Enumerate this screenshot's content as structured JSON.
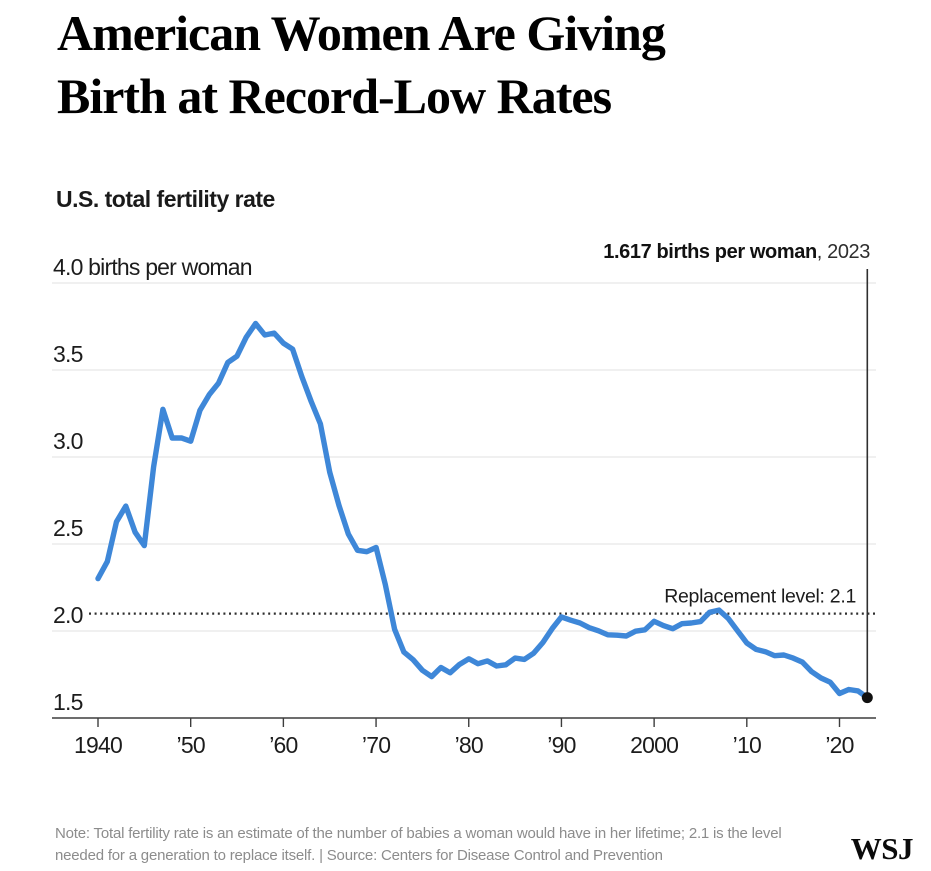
{
  "header": {
    "title_line1": "American Women Are Giving",
    "title_line2": "Birth at Record-Low Rates",
    "subtitle": "U.S. total fertility rate"
  },
  "footer": {
    "note_line1": "Note: Total fertility rate is an estimate of the number of babies a woman would have in her lifetime; 2.1 is the level",
    "note_line2": "needed for a generation to replace itself. | Source: Centers for Disease Control and Prevention",
    "logo": "WSJ"
  },
  "colors": {
    "line": "#3e87d8",
    "grid": "#e8e8e8",
    "axis": "#3d3d3d",
    "dotted": "#2e2e2e",
    "text": "#1c1c1c",
    "endpoint": "#101010",
    "marker_line": "#2f2f2f",
    "note": "#8c8c8c"
  },
  "chart_data": {
    "type": "line",
    "title": "American Women Are Giving Birth at Record-Low Rates",
    "subtitle": "U.S. total fertility rate",
    "ylabel": "births per woman",
    "xlabel": "",
    "ylim": [
      1.5,
      4.0
    ],
    "xlim": [
      1940,
      2023
    ],
    "grid": "horizontal",
    "legend": "none",
    "y_ticks": [
      {
        "value": 4.0,
        "label": "4.0 births per woman"
      },
      {
        "value": 3.5,
        "label": "3.5"
      },
      {
        "value": 3.0,
        "label": "3.0"
      },
      {
        "value": 2.5,
        "label": "2.5"
      },
      {
        "value": 2.0,
        "label": "2.0"
      },
      {
        "value": 1.5,
        "label": "1.5"
      }
    ],
    "x_ticks": [
      {
        "year": 1940,
        "label": "1940"
      },
      {
        "year": 1950,
        "label": "’50"
      },
      {
        "year": 1960,
        "label": "’60"
      },
      {
        "year": 1970,
        "label": "’70"
      },
      {
        "year": 1980,
        "label": "’80"
      },
      {
        "year": 1990,
        "label": "’90"
      },
      {
        "year": 2000,
        "label": "2000"
      },
      {
        "year": 2010,
        "label": "’10"
      },
      {
        "year": 2020,
        "label": "’20"
      }
    ],
    "replacement_level": {
      "value": 2.1,
      "label": "Replacement level: 2.1"
    },
    "endpoint": {
      "year": 2023,
      "value": 1.617,
      "label_bold": "1.617 births per woman",
      "label_rest": ", 2023"
    },
    "x": [
      1940,
      1941,
      1942,
      1943,
      1944,
      1945,
      1946,
      1947,
      1948,
      1949,
      1950,
      1951,
      1952,
      1953,
      1954,
      1955,
      1956,
      1957,
      1958,
      1959,
      1960,
      1961,
      1962,
      1963,
      1964,
      1965,
      1966,
      1967,
      1968,
      1969,
      1970,
      1971,
      1972,
      1973,
      1974,
      1975,
      1976,
      1977,
      1978,
      1979,
      1980,
      1981,
      1982,
      1983,
      1984,
      1985,
      1986,
      1987,
      1988,
      1989,
      1990,
      1991,
      1992,
      1993,
      1994,
      1995,
      1996,
      1997,
      1998,
      1999,
      2000,
      2001,
      2002,
      2003,
      2004,
      2005,
      2006,
      2007,
      2008,
      2009,
      2010,
      2011,
      2012,
      2013,
      2014,
      2015,
      2016,
      2017,
      2018,
      2019,
      2020,
      2021,
      2022,
      2023
    ],
    "values": [
      2.301,
      2.399,
      2.628,
      2.718,
      2.568,
      2.491,
      2.943,
      3.274,
      3.109,
      3.11,
      3.091,
      3.269,
      3.358,
      3.424,
      3.543,
      3.58,
      3.689,
      3.767,
      3.701,
      3.712,
      3.654,
      3.62,
      3.461,
      3.319,
      3.19,
      2.913,
      2.721,
      2.558,
      2.464,
      2.456,
      2.48,
      2.267,
      2.01,
      1.879,
      1.835,
      1.774,
      1.738,
      1.79,
      1.76,
      1.808,
      1.84,
      1.812,
      1.828,
      1.799,
      1.806,
      1.844,
      1.837,
      1.872,
      1.934,
      2.014,
      2.081,
      2.062,
      2.046,
      2.019,
      2.001,
      1.978,
      1.976,
      1.971,
      1.999,
      2.007,
      2.056,
      2.031,
      2.013,
      2.042,
      2.046,
      2.054,
      2.108,
      2.12,
      2.072,
      2.002,
      1.931,
      1.894,
      1.881,
      1.858,
      1.862,
      1.844,
      1.821,
      1.766,
      1.73,
      1.706,
      1.641,
      1.664,
      1.656,
      1.617
    ]
  }
}
